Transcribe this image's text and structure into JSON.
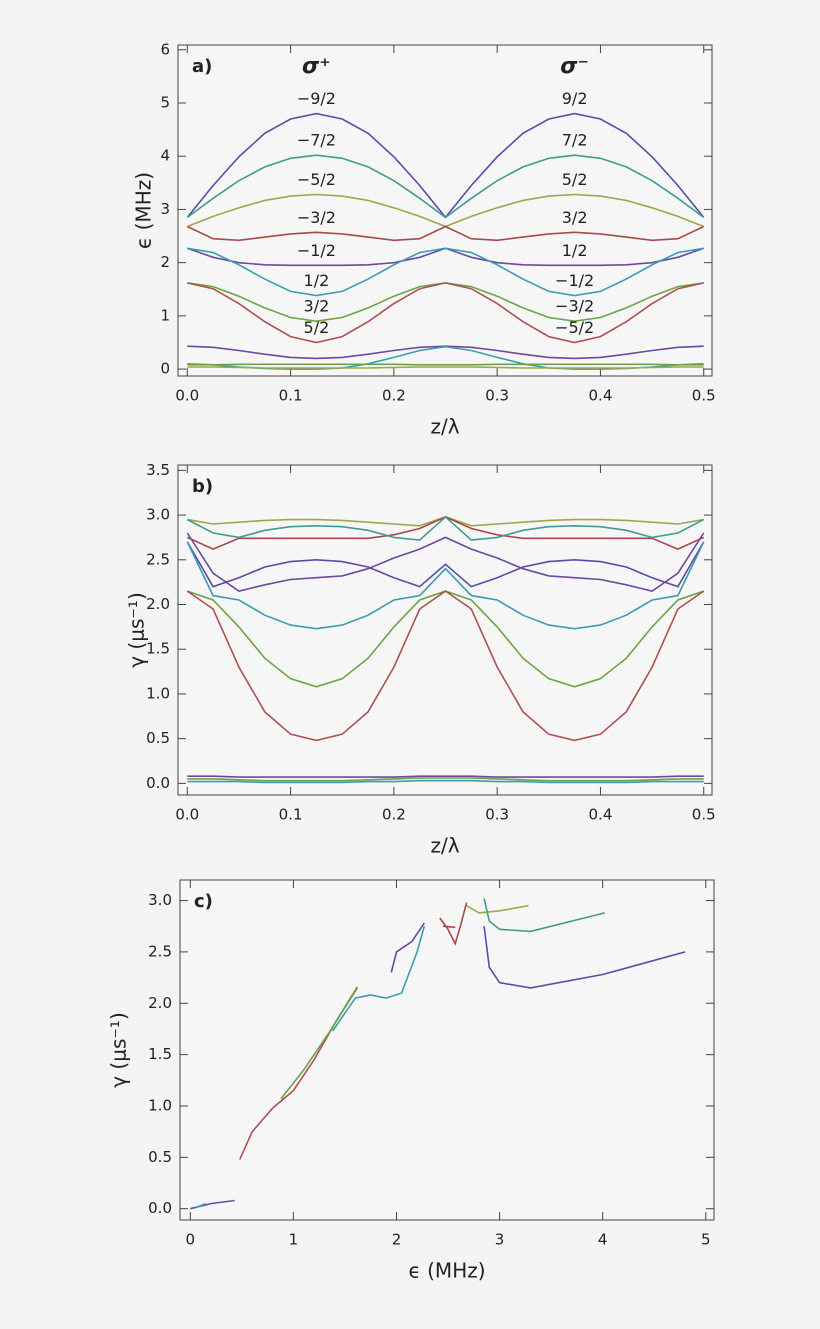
{
  "chart_data": [
    {
      "type": "line",
      "panel_label": "a)",
      "xlabel": "z/λ",
      "ylabel": "ϵ (MHz)",
      "column_titles": [
        "σ⁺",
        "σ⁻"
      ],
      "xlim": [
        -0.009,
        0.508
      ],
      "ylim": [
        -0.13,
        6.09
      ],
      "xticks": [
        {
          "value": 0,
          "label": "0.0"
        },
        0.1,
        0.2,
        0.3,
        0.4,
        0.5
      ],
      "yticks": [
        0,
        1,
        2,
        3,
        4,
        5,
        6
      ],
      "x": [
        0,
        0.025,
        0.05,
        0.075,
        0.1,
        0.125,
        0.15,
        0.175,
        0.2,
        0.225,
        0.25,
        0.275,
        0.3,
        0.325,
        0.35,
        0.375,
        0.4,
        0.425,
        0.45,
        0.475,
        0.5
      ],
      "series": [
        {
          "color": "#5b4ba6",
          "labels": [
            "−9/2",
            "9/2"
          ],
          "values": [
            2.85,
            3.45,
            3.99,
            4.43,
            4.7,
            4.8,
            4.7,
            4.43,
            3.99,
            3.45,
            2.85,
            3.45,
            3.99,
            4.43,
            4.7,
            4.8,
            4.7,
            4.43,
            3.99,
            3.45,
            2.85
          ]
        },
        {
          "color": "#3d9e8f",
          "labels": [
            "−7/2",
            "7/2"
          ],
          "values": [
            2.85,
            3.21,
            3.54,
            3.8,
            3.96,
            4.02,
            3.96,
            3.8,
            3.54,
            3.21,
            2.85,
            3.21,
            3.54,
            3.8,
            3.96,
            4.02,
            3.96,
            3.8,
            3.54,
            3.21,
            2.85
          ]
        },
        {
          "color": "#a0a648",
          "labels": [
            "−5/2",
            "5/2"
          ],
          "values": [
            2.68,
            2.87,
            3.03,
            3.17,
            3.25,
            3.28,
            3.25,
            3.17,
            3.03,
            2.87,
            2.68,
            2.87,
            3.03,
            3.17,
            3.25,
            3.28,
            3.25,
            3.17,
            3.03,
            2.87,
            2.68
          ]
        },
        {
          "color": "#a84a4a",
          "labels": [
            "−3/2",
            "3/2"
          ],
          "values": [
            2.68,
            2.45,
            2.42,
            2.48,
            2.54,
            2.57,
            2.54,
            2.48,
            2.42,
            2.45,
            2.68,
            2.45,
            2.42,
            2.48,
            2.54,
            2.57,
            2.54,
            2.48,
            2.42,
            2.45,
            2.68
          ]
        },
        {
          "color": "#6e47a2",
          "labels": [
            "−1/2",
            "1/2"
          ],
          "values": [
            2.27,
            2.1,
            2.0,
            1.96,
            1.95,
            1.95,
            1.95,
            1.96,
            2.0,
            2.1,
            2.27,
            2.1,
            2.0,
            1.96,
            1.95,
            1.95,
            1.95,
            1.96,
            2.0,
            2.1,
            2.27
          ]
        },
        {
          "color": "#3a9db0",
          "labels": [
            "1/2",
            "−1/2"
          ],
          "values": [
            2.27,
            2.19,
            1.96,
            1.69,
            1.46,
            1.38,
            1.46,
            1.69,
            1.96,
            2.19,
            2.27,
            2.19,
            1.96,
            1.69,
            1.46,
            1.38,
            1.46,
            1.69,
            1.96,
            2.19,
            2.27
          ]
        },
        {
          "color": "#6aa446",
          "labels": [
            "3/2",
            "−3/2"
          ],
          "values": [
            1.62,
            1.55,
            1.37,
            1.15,
            0.97,
            0.9,
            0.97,
            1.15,
            1.37,
            1.55,
            1.62,
            1.55,
            1.37,
            1.15,
            0.97,
            0.9,
            0.97,
            1.15,
            1.37,
            1.55,
            1.62
          ]
        },
        {
          "color": "#b05050",
          "labels": [
            "5/2",
            "−5/2"
          ],
          "values": [
            1.62,
            1.51,
            1.23,
            0.89,
            0.61,
            0.5,
            0.61,
            0.89,
            1.23,
            1.51,
            1.62,
            1.51,
            1.23,
            0.89,
            0.61,
            0.5,
            0.61,
            0.89,
            1.23,
            1.51,
            1.62
          ]
        },
        {
          "color": "#6e47a2",
          "values": [
            0.43,
            0.41,
            0.35,
            0.28,
            0.22,
            0.2,
            0.22,
            0.28,
            0.35,
            0.41,
            0.43,
            0.41,
            0.35,
            0.28,
            0.22,
            0.2,
            0.22,
            0.28,
            0.35,
            0.41,
            0.43
          ]
        },
        {
          "color": "#3a9db0",
          "values": [
            0.1,
            0.08,
            0.04,
            0.01,
            0,
            0,
            0.02,
            0.1,
            0.22,
            0.35,
            0.42,
            0.35,
            0.22,
            0.1,
            0.02,
            0,
            0,
            0.01,
            0.04,
            0.08,
            0.1
          ]
        },
        {
          "color": "#6aa446",
          "values": [
            0.08,
            0.08,
            0.09,
            0.09,
            0.09,
            0.09,
            0.09,
            0.09,
            0.09,
            0.08,
            0.08,
            0.08,
            0.09,
            0.09,
            0.09,
            0.09,
            0.09,
            0.09,
            0.09,
            0.08,
            0.08
          ]
        },
        {
          "color": "#a0a648",
          "values": [
            0.04,
            0.04,
            0.03,
            0.02,
            0.02,
            0.02,
            0.02,
            0.02,
            0.03,
            0.04,
            0.04,
            0.04,
            0.03,
            0.02,
            0.02,
            0.02,
            0.02,
            0.02,
            0.03,
            0.04,
            0.04
          ]
        }
      ]
    },
    {
      "type": "line",
      "panel_label": "b)",
      "xlabel": "z/λ",
      "ylabel": "γ (μs⁻¹)",
      "xlim": [
        -0.009,
        0.508
      ],
      "ylim": [
        -0.13,
        3.56
      ],
      "xticks": [
        {
          "value": 0,
          "label": "0.0"
        },
        0.1,
        0.2,
        0.3,
        0.4,
        0.5
      ],
      "yticks": [
        {
          "value": 0,
          "label": "0.0"
        },
        0.5,
        {
          "value": 1,
          "label": "1.0"
        },
        1.5,
        {
          "value": 2,
          "label": "2.0"
        },
        2.5,
        {
          "value": 3,
          "label": "3.0"
        },
        3.5
      ],
      "x": [
        0,
        0.025,
        0.05,
        0.075,
        0.1,
        0.125,
        0.15,
        0.175,
        0.2,
        0.225,
        0.25,
        0.275,
        0.3,
        0.325,
        0.35,
        0.375,
        0.4,
        0.425,
        0.45,
        0.475,
        0.5
      ],
      "series": [
        {
          "color": "#a0a648",
          "values": [
            2.95,
            2.9,
            2.92,
            2.94,
            2.95,
            2.95,
            2.94,
            2.92,
            2.9,
            2.88,
            2.98,
            2.88,
            2.9,
            2.92,
            2.94,
            2.95,
            2.95,
            2.94,
            2.92,
            2.9,
            2.95
          ]
        },
        {
          "color": "#a84a4a",
          "values": [
            2.75,
            2.62,
            2.74,
            2.74,
            2.74,
            2.74,
            2.74,
            2.74,
            2.78,
            2.85,
            2.98,
            2.85,
            2.78,
            2.74,
            2.74,
            2.74,
            2.74,
            2.74,
            2.74,
            2.62,
            2.75
          ]
        },
        {
          "color": "#3d9e8f",
          "values": [
            2.95,
            2.8,
            2.75,
            2.83,
            2.87,
            2.88,
            2.87,
            2.83,
            2.75,
            2.72,
            2.98,
            2.72,
            2.75,
            2.83,
            2.87,
            2.88,
            2.87,
            2.83,
            2.75,
            2.8,
            2.95
          ]
        },
        {
          "color": "#5b4ba6",
          "values": [
            2.7,
            2.2,
            2.3,
            2.42,
            2.48,
            2.5,
            2.48,
            2.42,
            2.3,
            2.2,
            2.45,
            2.2,
            2.3,
            2.42,
            2.48,
            2.5,
            2.48,
            2.42,
            2.3,
            2.2,
            2.7
          ]
        },
        {
          "color": "#6e47a2",
          "values": [
            2.8,
            2.35,
            2.15,
            2.22,
            2.28,
            2.3,
            2.32,
            2.4,
            2.52,
            2.62,
            2.75,
            2.62,
            2.52,
            2.4,
            2.32,
            2.3,
            2.28,
            2.22,
            2.15,
            2.35,
            2.8
          ]
        },
        {
          "color": "#3a9db0",
          "values": [
            2.7,
            2.1,
            2.05,
            1.88,
            1.77,
            1.73,
            1.77,
            1.88,
            2.05,
            2.1,
            2.4,
            2.1,
            2.05,
            1.88,
            1.77,
            1.73,
            1.77,
            1.88,
            2.05,
            2.1,
            2.7
          ]
        },
        {
          "color": "#6aa446",
          "values": [
            2.15,
            2.05,
            1.75,
            1.4,
            1.17,
            1.08,
            1.17,
            1.4,
            1.75,
            2.05,
            2.15,
            2.05,
            1.75,
            1.4,
            1.17,
            1.08,
            1.17,
            1.4,
            1.75,
            2.05,
            2.15
          ]
        },
        {
          "color": "#b05050",
          "values": [
            2.15,
            1.95,
            1.3,
            0.8,
            0.55,
            0.48,
            0.55,
            0.8,
            1.3,
            1.95,
            2.15,
            1.95,
            1.3,
            0.8,
            0.55,
            0.48,
            0.55,
            0.8,
            1.3,
            1.95,
            2.15
          ]
        },
        {
          "color": "#6e47a2",
          "values": [
            0.08,
            0.08,
            0.07,
            0.07,
            0.07,
            0.07,
            0.07,
            0.07,
            0.07,
            0.08,
            0.08,
            0.08,
            0.07,
            0.07,
            0.07,
            0.07,
            0.07,
            0.07,
            0.07,
            0.08,
            0.08
          ]
        },
        {
          "color": "#6aa446",
          "values": [
            0.05,
            0.05,
            0.04,
            0.03,
            0.03,
            0.03,
            0.03,
            0.04,
            0.05,
            0.06,
            0.06,
            0.06,
            0.05,
            0.04,
            0.03,
            0.03,
            0.03,
            0.03,
            0.04,
            0.05,
            0.05
          ]
        },
        {
          "color": "#3a9db0",
          "values": [
            0.02,
            0.02,
            0.02,
            0.01,
            0.01,
            0.01,
            0.01,
            0.02,
            0.02,
            0.03,
            0.03,
            0.03,
            0.02,
            0.02,
            0.01,
            0.01,
            0.01,
            0.01,
            0.02,
            0.02,
            0.02
          ]
        }
      ]
    },
    {
      "type": "line",
      "panel_label": "c)",
      "xlabel": "ϵ (MHz)",
      "ylabel": "γ (μs⁻¹)",
      "xlim": [
        -0.1,
        5.08
      ],
      "ylim": [
        -0.11,
        3.2
      ],
      "xticks": [
        0,
        1,
        2,
        3,
        4,
        5
      ],
      "yticks": [
        {
          "value": 0,
          "label": "0.0"
        },
        0.5,
        {
          "value": 1,
          "label": "1.0"
        },
        1.5,
        {
          "value": 2,
          "label": "2.0"
        },
        2.5,
        {
          "value": 3,
          "label": "3.0"
        }
      ],
      "series": [
        {
          "color": "#b05050",
          "x": [
            0.48,
            0.6,
            0.8,
            1.0,
            1.2,
            1.4,
            1.62
          ],
          "values": [
            0.48,
            0.75,
            0.98,
            1.15,
            1.45,
            1.8,
            2.15
          ]
        },
        {
          "color": "#6aa446",
          "x": [
            0.88,
            1.1,
            1.35,
            1.62
          ],
          "values": [
            1.07,
            1.35,
            1.72,
            2.16
          ]
        },
        {
          "color": "#3a9db0",
          "x": [
            1.38,
            1.6,
            1.75,
            1.9,
            2.05,
            2.2,
            2.27
          ],
          "values": [
            1.73,
            2.05,
            2.08,
            2.05,
            2.1,
            2.5,
            2.75
          ]
        },
        {
          "color": "#6e47a2",
          "x": [
            1.95,
            2.0,
            2.15,
            2.27
          ],
          "values": [
            2.3,
            2.5,
            2.6,
            2.78
          ]
        },
        {
          "color": "#a84a4a",
          "x": [
            2.42,
            2.5,
            2.57,
            2.62,
            2.68
          ],
          "values": [
            2.83,
            2.72,
            2.58,
            2.75,
            2.98
          ]
        },
        {
          "color": "#a84a4a",
          "x": [
            2.45,
            2.57
          ],
          "values": [
            2.75,
            2.74
          ]
        },
        {
          "color": "#a0a648",
          "x": [
            2.68,
            2.8,
            3.0,
            3.28
          ],
          "values": [
            2.95,
            2.88,
            2.9,
            2.95
          ]
        },
        {
          "color": "#3d9e8f",
          "x": [
            2.85,
            2.9,
            3.0,
            3.3,
            4.02
          ],
          "values": [
            3.02,
            2.8,
            2.72,
            2.7,
            2.88
          ]
        },
        {
          "color": "#5b4ba6",
          "x": [
            2.85,
            2.9,
            3.0,
            3.3,
            4.0,
            4.8
          ],
          "values": [
            2.75,
            2.35,
            2.2,
            2.15,
            2.28,
            2.5
          ]
        },
        {
          "color": "#6e47a2",
          "x": [
            0,
            0.2,
            0.43
          ],
          "values": [
            0,
            0.05,
            0.08
          ]
        },
        {
          "color": "#3a9db0",
          "x": [
            0.05,
            0.15
          ],
          "values": [
            0.01,
            0.05
          ]
        }
      ]
    }
  ]
}
